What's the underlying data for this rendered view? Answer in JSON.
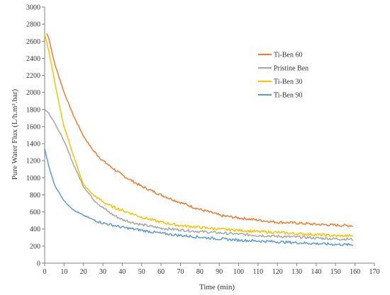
{
  "chart_data": {
    "type": "line",
    "title": "",
    "xlabel": "Time (min)",
    "ylabel": "Pure Water Flux (L/h.m².bar)",
    "xlim": [
      0,
      170
    ],
    "ylim": [
      0,
      3000
    ],
    "x_ticks": [
      0,
      10,
      20,
      30,
      40,
      50,
      60,
      70,
      80,
      90,
      100,
      110,
      120,
      130,
      140,
      150,
      160,
      170
    ],
    "y_ticks": [
      0,
      200,
      400,
      600,
      800,
      1000,
      1200,
      1400,
      1600,
      1800,
      2000,
      2200,
      2400,
      2600,
      2800,
      3000
    ],
    "x_tick_labels": [
      "0",
      "10",
      "20",
      "30",
      "40",
      "50",
      "60",
      "70",
      "80",
      "90",
      "100",
      "110",
      "120",
      "130",
      "140",
      "150",
      "160",
      "170"
    ],
    "y_tick_labels": [
      "0",
      "200",
      "400",
      "600",
      "800",
      "1000",
      "1200",
      "1400",
      "1600",
      "1800",
      "2000",
      "2200",
      "2400",
      "2600",
      "2800",
      "3000"
    ],
    "grid": false,
    "legend_position": "top-right",
    "series": [
      {
        "name": "Ti-Ben 60",
        "color": "#ED7D31",
        "x": [
          1,
          2,
          5,
          10,
          15,
          20,
          25,
          30,
          40,
          50,
          60,
          70,
          80,
          88,
          90,
          100,
          110,
          120,
          130,
          140,
          150,
          159
        ],
        "y": [
          2690,
          2650,
          2350,
          2000,
          1720,
          1490,
          1320,
          1200,
          1030,
          900,
          800,
          710,
          630,
          580,
          560,
          530,
          505,
          480,
          470,
          455,
          445,
          440
        ]
      },
      {
        "name": "Pristine Ben",
        "color": "#A5A5A5",
        "x": [
          0,
          2,
          5,
          10,
          15,
          20,
          25,
          30,
          35,
          40,
          50,
          60,
          70,
          80,
          90,
          100,
          110,
          120,
          130,
          140,
          150,
          159
        ],
        "y": [
          1800,
          1760,
          1650,
          1430,
          1150,
          900,
          750,
          650,
          570,
          510,
          450,
          410,
          390,
          370,
          355,
          340,
          325,
          315,
          305,
          295,
          285,
          280
        ]
      },
      {
        "name": "Ti-Ben 30",
        "color": "#FFC000",
        "x": [
          0,
          2,
          5,
          8,
          10,
          15,
          20,
          25,
          30,
          35,
          40,
          50,
          60,
          70,
          80,
          90,
          100,
          110,
          120,
          130,
          140,
          150,
          159
        ],
        "y": [
          2680,
          2500,
          2150,
          1800,
          1600,
          1250,
          920,
          800,
          720,
          660,
          620,
          540,
          480,
          440,
          420,
          400,
          385,
          370,
          360,
          345,
          335,
          320,
          320
        ]
      },
      {
        "name": "Ti-Ben 90",
        "color": "#5B9BD5",
        "x": [
          0,
          2,
          5,
          10,
          15,
          20,
          25,
          30,
          40,
          50,
          60,
          70,
          80,
          90,
          100,
          110,
          120,
          130,
          140,
          150,
          159
        ],
        "y": [
          1340,
          1150,
          920,
          730,
          620,
          560,
          510,
          470,
          420,
          385,
          350,
          325,
          305,
          285,
          270,
          260,
          250,
          240,
          230,
          220,
          215
        ]
      }
    ]
  }
}
